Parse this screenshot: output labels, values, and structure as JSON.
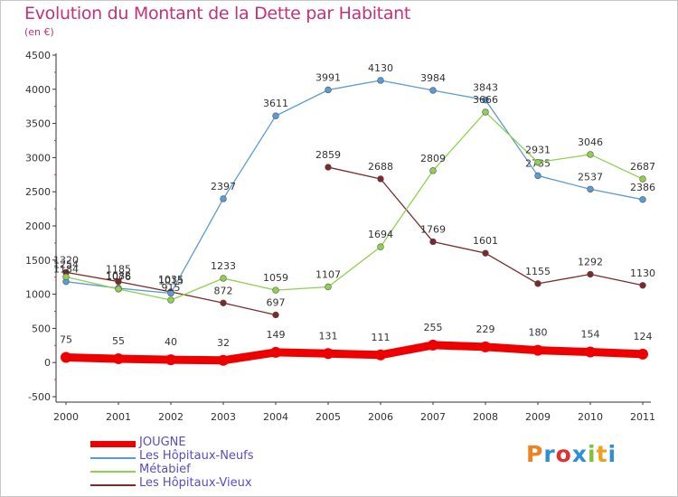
{
  "title": "Evolution du Montant de la Dette par Habitant",
  "subtitle": "(en €)",
  "logo": {
    "text": "Proxiti",
    "colors": [
      "#f08020",
      "#2f8fd4",
      "#e03030",
      "#2f8fd4",
      "#7cc23a",
      "#f0a020",
      "#2f8fd4"
    ]
  },
  "chart_data": {
    "type": "line",
    "x": [
      "2000",
      "2001",
      "2002",
      "2003",
      "2004",
      "2005",
      "2006",
      "2007",
      "2008",
      "2009",
      "2010",
      "2011"
    ],
    "ylim": [
      -500,
      4500
    ],
    "yticks": [
      -500,
      0,
      500,
      1000,
      1500,
      2000,
      2500,
      3000,
      3500,
      4000,
      4500
    ],
    "grid": false,
    "legend_position": "bottom-left",
    "series": [
      {
        "name": "JOUGNE",
        "color": "#ee0000",
        "values": [
          75,
          55,
          40,
          32,
          149,
          131,
          111,
          255,
          229,
          180,
          154,
          124
        ]
      },
      {
        "name": "Les Hôpitaux-Neufs",
        "color": "#5b9bd5",
        "values": [
          1184,
          1088,
          1015,
          2397,
          3611,
          3991,
          4130,
          3984,
          3843,
          2735,
          2537,
          2386
        ]
      },
      {
        "name": "Métabief",
        "color": "#8fd14f",
        "values": [
          1254,
          1076,
          915,
          1233,
          1059,
          1107,
          1694,
          2809,
          3666,
          2931,
          3046,
          2687
        ]
      },
      {
        "name": "Les Hôpitaux-Vieux",
        "color": "#7a2a2a",
        "values": [
          1320,
          1185,
          1035,
          872,
          697,
          2859,
          2688,
          1769,
          1601,
          1155,
          1292,
          1130
        ],
        "segments": [
          [
            0,
            4
          ],
          [
            5,
            11
          ]
        ]
      }
    ]
  }
}
